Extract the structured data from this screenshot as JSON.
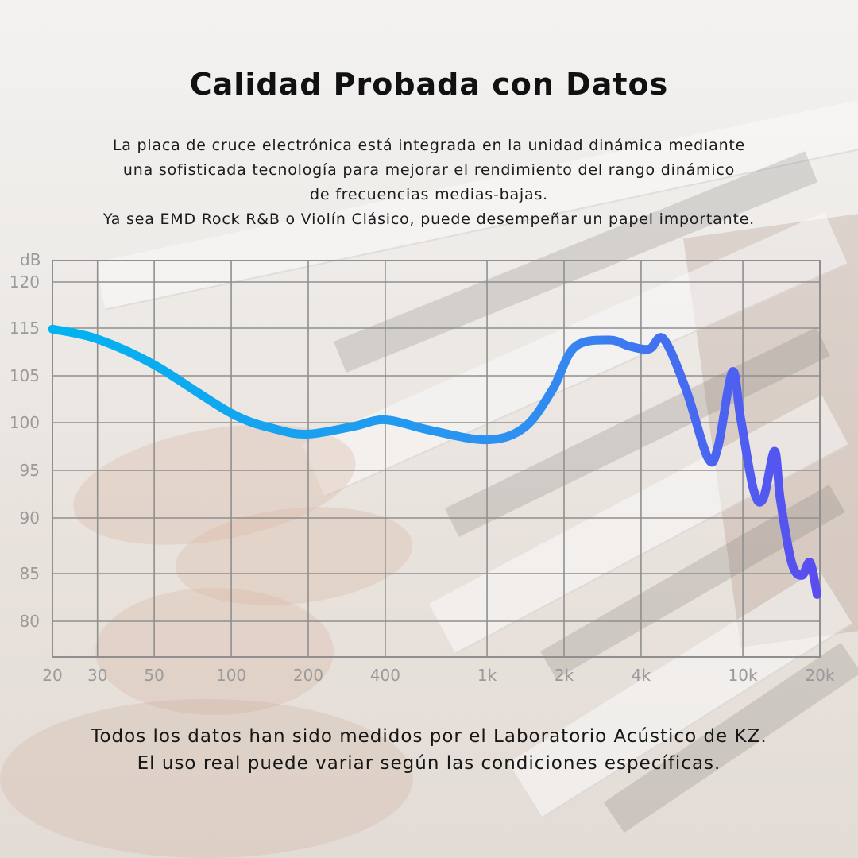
{
  "title": "Calidad Probada con Datos",
  "description": [
    "La placa de cruce electrónica está integrada en la unidad dinámica mediante",
    "una sofisticada tecnología para mejorar el rendimiento del rango dinámico",
    "de frecuencias medias-bajas.",
    "Ya sea EMD Rock R&B o Violín Clásico, puede desempeñar un papel importante."
  ],
  "chart_data": {
    "type": "line",
    "xscale": "log",
    "ylabel": "dB",
    "xlabel": "",
    "xlim": [
      20,
      20000
    ],
    "x_ticks": [
      20,
      30,
      50,
      100,
      200,
      400,
      1000,
      2000,
      4000,
      10000,
      20000
    ],
    "x_tick_labels": [
      "20",
      "30",
      "50",
      "100",
      "200",
      "400",
      "1k",
      "2k",
      "4k",
      "10k",
      "20k"
    ],
    "y_ticks": [
      120,
      115,
      105,
      100,
      95,
      90,
      85,
      80
    ],
    "y_tick_labels": [
      "120",
      "115",
      "105",
      "100",
      "95",
      "90",
      "85",
      "80"
    ],
    "grid": true,
    "colors": {
      "low": "#00b4f0",
      "mid": "#2f8ff0",
      "high": "#5a4cf0",
      "grid": "#8f8f8f",
      "tick": "#9a9a9a"
    },
    "series": [
      {
        "x": [
          20,
          30,
          50,
          100,
          150,
          200,
          300,
          400,
          600,
          1000,
          1400,
          1800,
          2200,
          3000,
          3600,
          4300,
          4900,
          6000,
          7300,
          8000,
          9100,
          9800,
          11000,
          12000,
          13300,
          14000,
          15500,
          17000,
          18300,
          19500
        ],
        "y": [
          114.8,
          112.7,
          107.3,
          101,
          99.3,
          98.8,
          99.6,
          100.3,
          99.2,
          98.2,
          99.5,
          103.5,
          111,
          112.5,
          111.2,
          110.6,
          112.7,
          103.5,
          96.3,
          97.5,
          105.8,
          100.5,
          93,
          92,
          97,
          92,
          86,
          84.8,
          86,
          82.8
        ]
      }
    ]
  },
  "footer": [
    "Todos los datos han sido medidos por el Laboratorio Acústico de KZ.",
    "El uso real puede variar según las condiciones específicas."
  ]
}
